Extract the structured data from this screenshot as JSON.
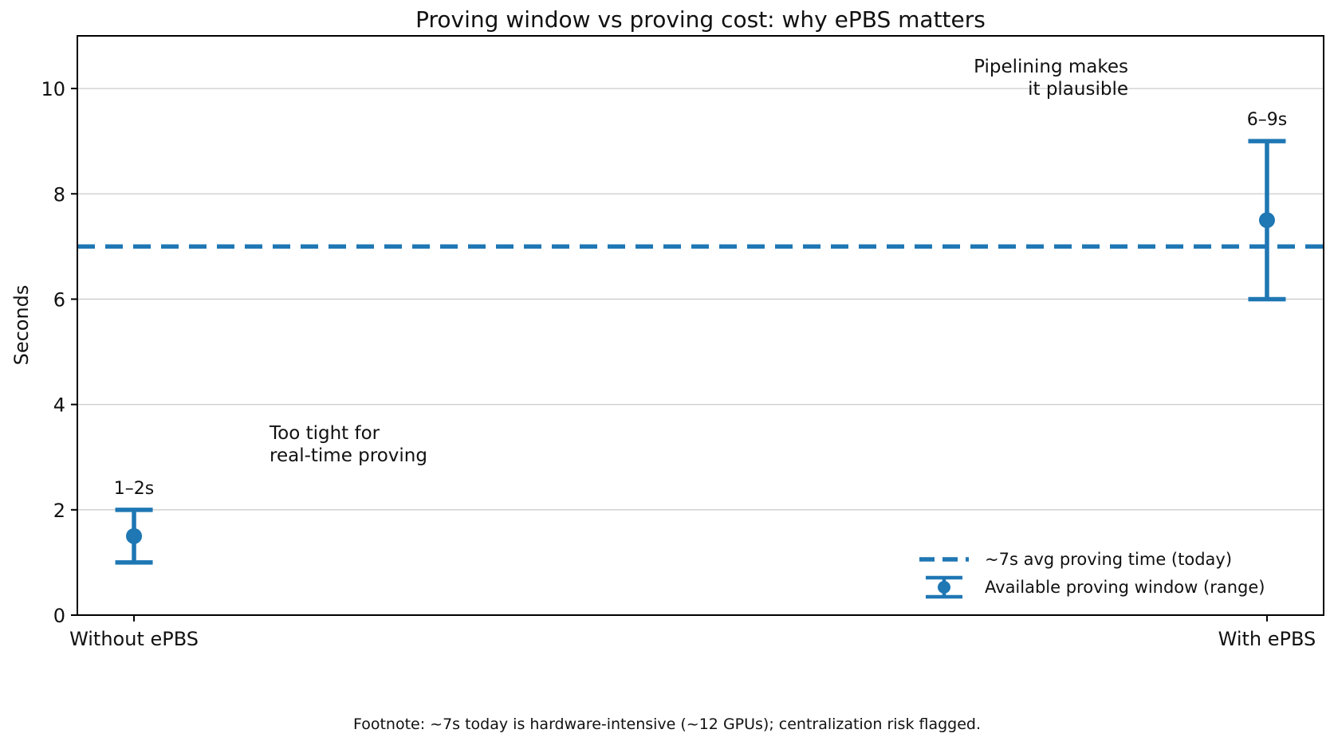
{
  "figure": {
    "footnote": "Footnote: ~7s today is hardware-intensive (~12 GPUs); centralization risk flagged.",
    "colors": {
      "accent_blue": "#1f77b4",
      "grid": "#cccccc",
      "axis": "#000000",
      "text": "#111111",
      "background": "#ffffff"
    }
  },
  "chart_data": {
    "type": "errorbar",
    "title": "Proving window vs proving cost: why ePBS matters",
    "xlabel": "",
    "ylabel": "Seconds",
    "categories": [
      "Without ePBS",
      "With ePBS"
    ],
    "points": [
      {
        "category": "Without ePBS",
        "x": 0,
        "low": 1,
        "high": 2,
        "center": 1.5,
        "label": "1–2s"
      },
      {
        "category": "With ePBS",
        "x": 1,
        "low": 6,
        "high": 9,
        "center": 7.5,
        "label": "6–9s"
      }
    ],
    "reference_line": {
      "y": 7,
      "style": "dashed",
      "label": "~7s avg proving time (today)"
    },
    "ylim": [
      0,
      11
    ],
    "xlim": [
      -0.05,
      1.05
    ],
    "yticks": [
      0,
      2,
      4,
      6,
      8,
      10
    ],
    "grid": "horizontal",
    "legend": {
      "position": "lower right",
      "frame": false,
      "entries": [
        {
          "swatch": "dashed-line",
          "label": "~7s avg proving time (today)"
        },
        {
          "swatch": "errorbar",
          "label": "Available proving window (range)"
        }
      ]
    },
    "annotations": [
      {
        "text": "Too tight for\nreal-time proving",
        "align": "left",
        "x": 0.12,
        "y": 3.5
      },
      {
        "text": "Pipelining makes\nit plausible",
        "align": "right",
        "x": 0.88,
        "y": 10.5
      }
    ]
  }
}
